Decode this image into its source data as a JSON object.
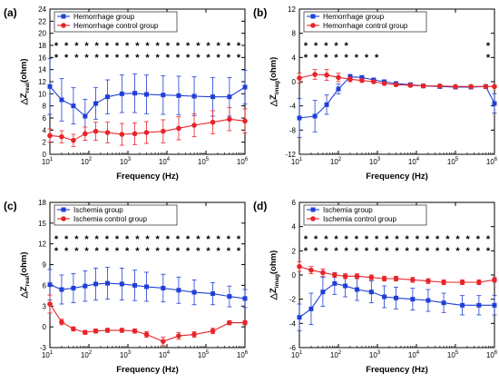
{
  "colors": {
    "blue": "#1f3fd6",
    "red": "#e8242a"
  },
  "x_label": "Frequency (Hz)",
  "x_ticks": [
    {
      "exp": "1",
      "val": 10
    },
    {
      "exp": "2",
      "val": 100
    },
    {
      "exp": "3",
      "val": 1000
    },
    {
      "exp": "4",
      "val": 10000
    },
    {
      "exp": "5",
      "val": 100000
    },
    {
      "exp": "6",
      "val": 1000000
    }
  ],
  "panels": [
    {
      "label": "(a)",
      "ylabel_main": "△Z",
      "ylabel_sub": "real",
      "ylabel_unit": "(ohm)",
      "star_row1": [
        "1",
        "1",
        "1",
        "1",
        "1",
        "1",
        "1",
        "1",
        "1",
        "1",
        "1",
        "1",
        "1",
        "1",
        "1",
        "1",
        "1",
        "1",
        "1"
      ],
      "star_row2": [
        "1",
        "1",
        "1",
        "1",
        "1",
        "1",
        "1",
        "1",
        "1",
        "1",
        "1",
        "1",
        "1",
        "1",
        "1",
        "1",
        "1",
        "1",
        "1"
      ]
    },
    {
      "label": "(b)",
      "ylabel_main": "△Z",
      "ylabel_sub": "imag",
      "ylabel_unit": "(ohm)",
      "star_row1": [
        "1",
        "1",
        "1",
        "1",
        "1",
        "0",
        "0",
        "0",
        "0",
        "0",
        "0",
        "0",
        "0",
        "0",
        "0",
        "0",
        "0",
        "0",
        "1"
      ],
      "star_row2": [
        "1",
        "1",
        "1",
        "1",
        "1",
        "1",
        "1",
        "1",
        "0",
        "0",
        "0",
        "0",
        "0",
        "0",
        "0",
        "0",
        "0",
        "0",
        "1"
      ]
    },
    {
      "label": "(c)",
      "ylabel_main": "△Z",
      "ylabel_sub": "real",
      "ylabel_unit": "(ohm)",
      "star_row1": [
        "1",
        "1",
        "1",
        "1",
        "1",
        "1",
        "1",
        "1",
        "1",
        "1",
        "1",
        "1",
        "1",
        "1",
        "1",
        "1",
        "1",
        "1",
        "1"
      ],
      "star_row2": [
        "1",
        "1",
        "1",
        "1",
        "1",
        "1",
        "1",
        "1",
        "1",
        "1",
        "1",
        "1",
        "1",
        "1",
        "1",
        "1",
        "1",
        "1",
        "1"
      ]
    },
    {
      "label": "(d)",
      "ylabel_main": "△Z",
      "ylabel_sub": "imag",
      "ylabel_unit": "(ohm)",
      "star_row1": [
        "1",
        "1",
        "1",
        "1",
        "1",
        "1",
        "1",
        "1",
        "1",
        "1",
        "1",
        "1",
        "1",
        "1",
        "1",
        "1",
        "1",
        "1",
        "1"
      ],
      "star_row2": [
        "1",
        "1",
        "1",
        "1",
        "1",
        "1",
        "1",
        "1",
        "1",
        "1",
        "1",
        "1",
        "1",
        "1",
        "1",
        "1",
        "1",
        "1",
        "1"
      ]
    }
  ],
  "chart_data": [
    {
      "type": "line",
      "panel": "(a)",
      "xscale": "log",
      "xlabel": "Frequency (Hz)",
      "ylabel": "△Z real (ohm)",
      "ylim": [
        0,
        24
      ],
      "yticks": [
        0,
        2,
        4,
        6,
        8,
        10,
        12,
        14,
        16,
        18,
        20,
        22,
        24
      ],
      "legend": "top-left",
      "x": [
        10,
        20,
        30,
        50,
        70,
        100,
        150,
        200,
        300,
        500,
        700,
        1000,
        1500,
        2000,
        3000,
        5000,
        7000,
        10000,
        15000,
        20000,
        30000,
        50000,
        70000,
        100000,
        150000,
        200000,
        300000,
        500000,
        700000,
        1000000
      ],
      "series": [
        {
          "name": "Hemorrhage group",
          "color_key": "blue",
          "marker": "square",
          "x": [
            10,
            20,
            40,
            80,
            150,
            300,
            700,
            1500,
            3000,
            8000,
            20000,
            50000,
            150000,
            400000,
            1000000
          ],
          "y": [
            11.2,
            9.0,
            8.0,
            6.3,
            8.4,
            9.5,
            10.0,
            10.1,
            9.9,
            9.8,
            9.7,
            9.6,
            9.5,
            9.5,
            11.1
          ],
          "err": [
            4.6,
            3.5,
            3.0,
            2.8,
            2.6,
            2.8,
            3.1,
            3.2,
            3.2,
            3.2,
            3.2,
            3.2,
            3.2,
            3.2,
            2.8
          ]
        },
        {
          "name": "Hemorrhage control group",
          "color_key": "red",
          "marker": "circle",
          "x": [
            10,
            20,
            40,
            80,
            150,
            300,
            700,
            1500,
            3000,
            8000,
            20000,
            50000,
            150000,
            400000,
            1000000
          ],
          "y": [
            3.1,
            2.9,
            2.3,
            3.4,
            3.8,
            3.6,
            3.3,
            3.4,
            3.6,
            3.8,
            4.3,
            4.8,
            5.3,
            5.8,
            5.5
          ],
          "err": [
            1.1,
            1.0,
            1.0,
            1.1,
            1.5,
            1.7,
            1.8,
            1.8,
            1.8,
            1.9,
            1.9,
            1.9,
            1.9,
            1.9,
            2.0
          ]
        }
      ]
    },
    {
      "type": "line",
      "panel": "(b)",
      "xscale": "log",
      "xlabel": "Frequency (Hz)",
      "ylabel": "△Z imag (ohm)",
      "ylim": [
        -12,
        12
      ],
      "yticks": [
        -12,
        -8,
        -4,
        0,
        4,
        8,
        12
      ],
      "legend": "top-left",
      "series": [
        {
          "name": "Hemorrhage group",
          "color_key": "blue",
          "marker": "square",
          "x": [
            10,
            25,
            50,
            100,
            200,
            400,
            800,
            1500,
            3000,
            7000,
            15000,
            40000,
            100000,
            250000,
            600000,
            1000000
          ],
          "y": [
            -6.0,
            -5.7,
            -3.8,
            -1.2,
            0.8,
            0.7,
            0.3,
            0.0,
            -0.3,
            -0.5,
            -0.7,
            -0.8,
            -0.9,
            -0.9,
            -0.8,
            -3.6
          ],
          "err": [
            3.2,
            2.6,
            1.6,
            0.8,
            0.4,
            0.3,
            0.3,
            0.3,
            0.3,
            0.3,
            0.3,
            0.3,
            0.3,
            0.3,
            0.3,
            1.6
          ]
        },
        {
          "name": "Hemorrhage control group",
          "color_key": "red",
          "marker": "circle",
          "x": [
            10,
            25,
            50,
            100,
            200,
            400,
            800,
            1500,
            3000,
            7000,
            15000,
            40000,
            100000,
            250000,
            600000,
            1000000
          ],
          "y": [
            0.6,
            1.2,
            1.1,
            0.7,
            0.4,
            0.2,
            0.0,
            -0.3,
            -0.5,
            -0.6,
            -0.7,
            -0.7,
            -0.8,
            -0.8,
            -0.8,
            -0.8
          ],
          "err": [
            0.8,
            0.8,
            0.9,
            0.7,
            0.4,
            0.3,
            0.2,
            0.2,
            0.2,
            0.2,
            0.2,
            0.2,
            0.2,
            0.2,
            0.2,
            0.2
          ]
        }
      ]
    },
    {
      "type": "line",
      "panel": "(c)",
      "xscale": "log",
      "xlabel": "Frequency (Hz)",
      "ylabel": "△Z real (ohm)",
      "ylim": [
        -3,
        18
      ],
      "yticks": [
        -3,
        0,
        3,
        6,
        9,
        12,
        15,
        18
      ],
      "legend": "top-left",
      "series": [
        {
          "name": "Ischemia group",
          "color_key": "blue",
          "marker": "square",
          "x": [
            10,
            20,
            40,
            80,
            150,
            300,
            700,
            1500,
            3000,
            8000,
            20000,
            50000,
            150000,
            400000,
            1000000
          ],
          "y": [
            6.1,
            5.4,
            5.6,
            5.9,
            6.2,
            6.3,
            6.2,
            6.0,
            5.8,
            5.6,
            5.3,
            5.0,
            4.8,
            4.4,
            4.1
          ],
          "err": [
            2.2,
            2.1,
            2.1,
            2.2,
            2.3,
            2.3,
            2.3,
            2.2,
            2.1,
            2.0,
            1.9,
            1.8,
            1.6,
            1.5,
            1.3
          ]
        },
        {
          "name": "Ischemia control group",
          "color_key": "red",
          "marker": "circle",
          "x": [
            10,
            20,
            40,
            80,
            150,
            300,
            700,
            1500,
            3000,
            8000,
            20000,
            50000,
            150000,
            400000,
            1000000
          ],
          "y": [
            3.3,
            0.7,
            -0.3,
            -0.8,
            -0.6,
            -0.5,
            -0.5,
            -0.6,
            -1.1,
            -2.1,
            -1.3,
            -1.1,
            -0.6,
            0.6,
            0.6
          ],
          "err": [
            1.3,
            0.4,
            0.3,
            0.3,
            0.3,
            0.3,
            0.3,
            0.3,
            0.4,
            0.6,
            0.5,
            0.4,
            0.4,
            0.3,
            0.3
          ]
        }
      ]
    },
    {
      "type": "line",
      "panel": "(d)",
      "xscale": "log",
      "xlabel": "Frequency (Hz)",
      "ylabel": "△Z imag (ohm)",
      "ylim": [
        -6,
        6
      ],
      "yticks": [
        -6,
        -4,
        -2,
        0,
        2,
        4,
        6
      ],
      "legend": "top-left",
      "series": [
        {
          "name": "Ischemia group",
          "color_key": "blue",
          "marker": "square",
          "x": [
            10,
            20,
            40,
            80,
            150,
            300,
            700,
            1500,
            3000,
            8000,
            20000,
            50000,
            150000,
            400000,
            1000000
          ],
          "y": [
            -3.5,
            -2.8,
            -1.4,
            -0.7,
            -0.9,
            -1.2,
            -1.4,
            -1.8,
            -1.9,
            -2.0,
            -2.1,
            -2.3,
            -2.5,
            -2.5,
            -2.5
          ],
          "err": [
            1.1,
            1.3,
            1.2,
            0.9,
            0.9,
            0.9,
            0.9,
            0.9,
            0.9,
            0.9,
            0.9,
            0.8,
            0.8,
            0.8,
            0.8
          ]
        },
        {
          "name": "Ischemia control group",
          "color_key": "red",
          "marker": "circle",
          "x": [
            10,
            20,
            40,
            80,
            150,
            300,
            700,
            1500,
            3000,
            8000,
            20000,
            50000,
            150000,
            400000,
            1000000
          ],
          "y": [
            0.7,
            0.4,
            0.2,
            0.0,
            -0.1,
            -0.1,
            -0.2,
            -0.3,
            -0.3,
            -0.4,
            -0.5,
            -0.6,
            -0.6,
            -0.6,
            -0.4
          ],
          "err": [
            0.4,
            0.3,
            0.3,
            0.2,
            0.2,
            0.2,
            0.2,
            0.2,
            0.2,
            0.2,
            0.2,
            0.2,
            0.2,
            0.2,
            0.2
          ]
        }
      ]
    }
  ]
}
